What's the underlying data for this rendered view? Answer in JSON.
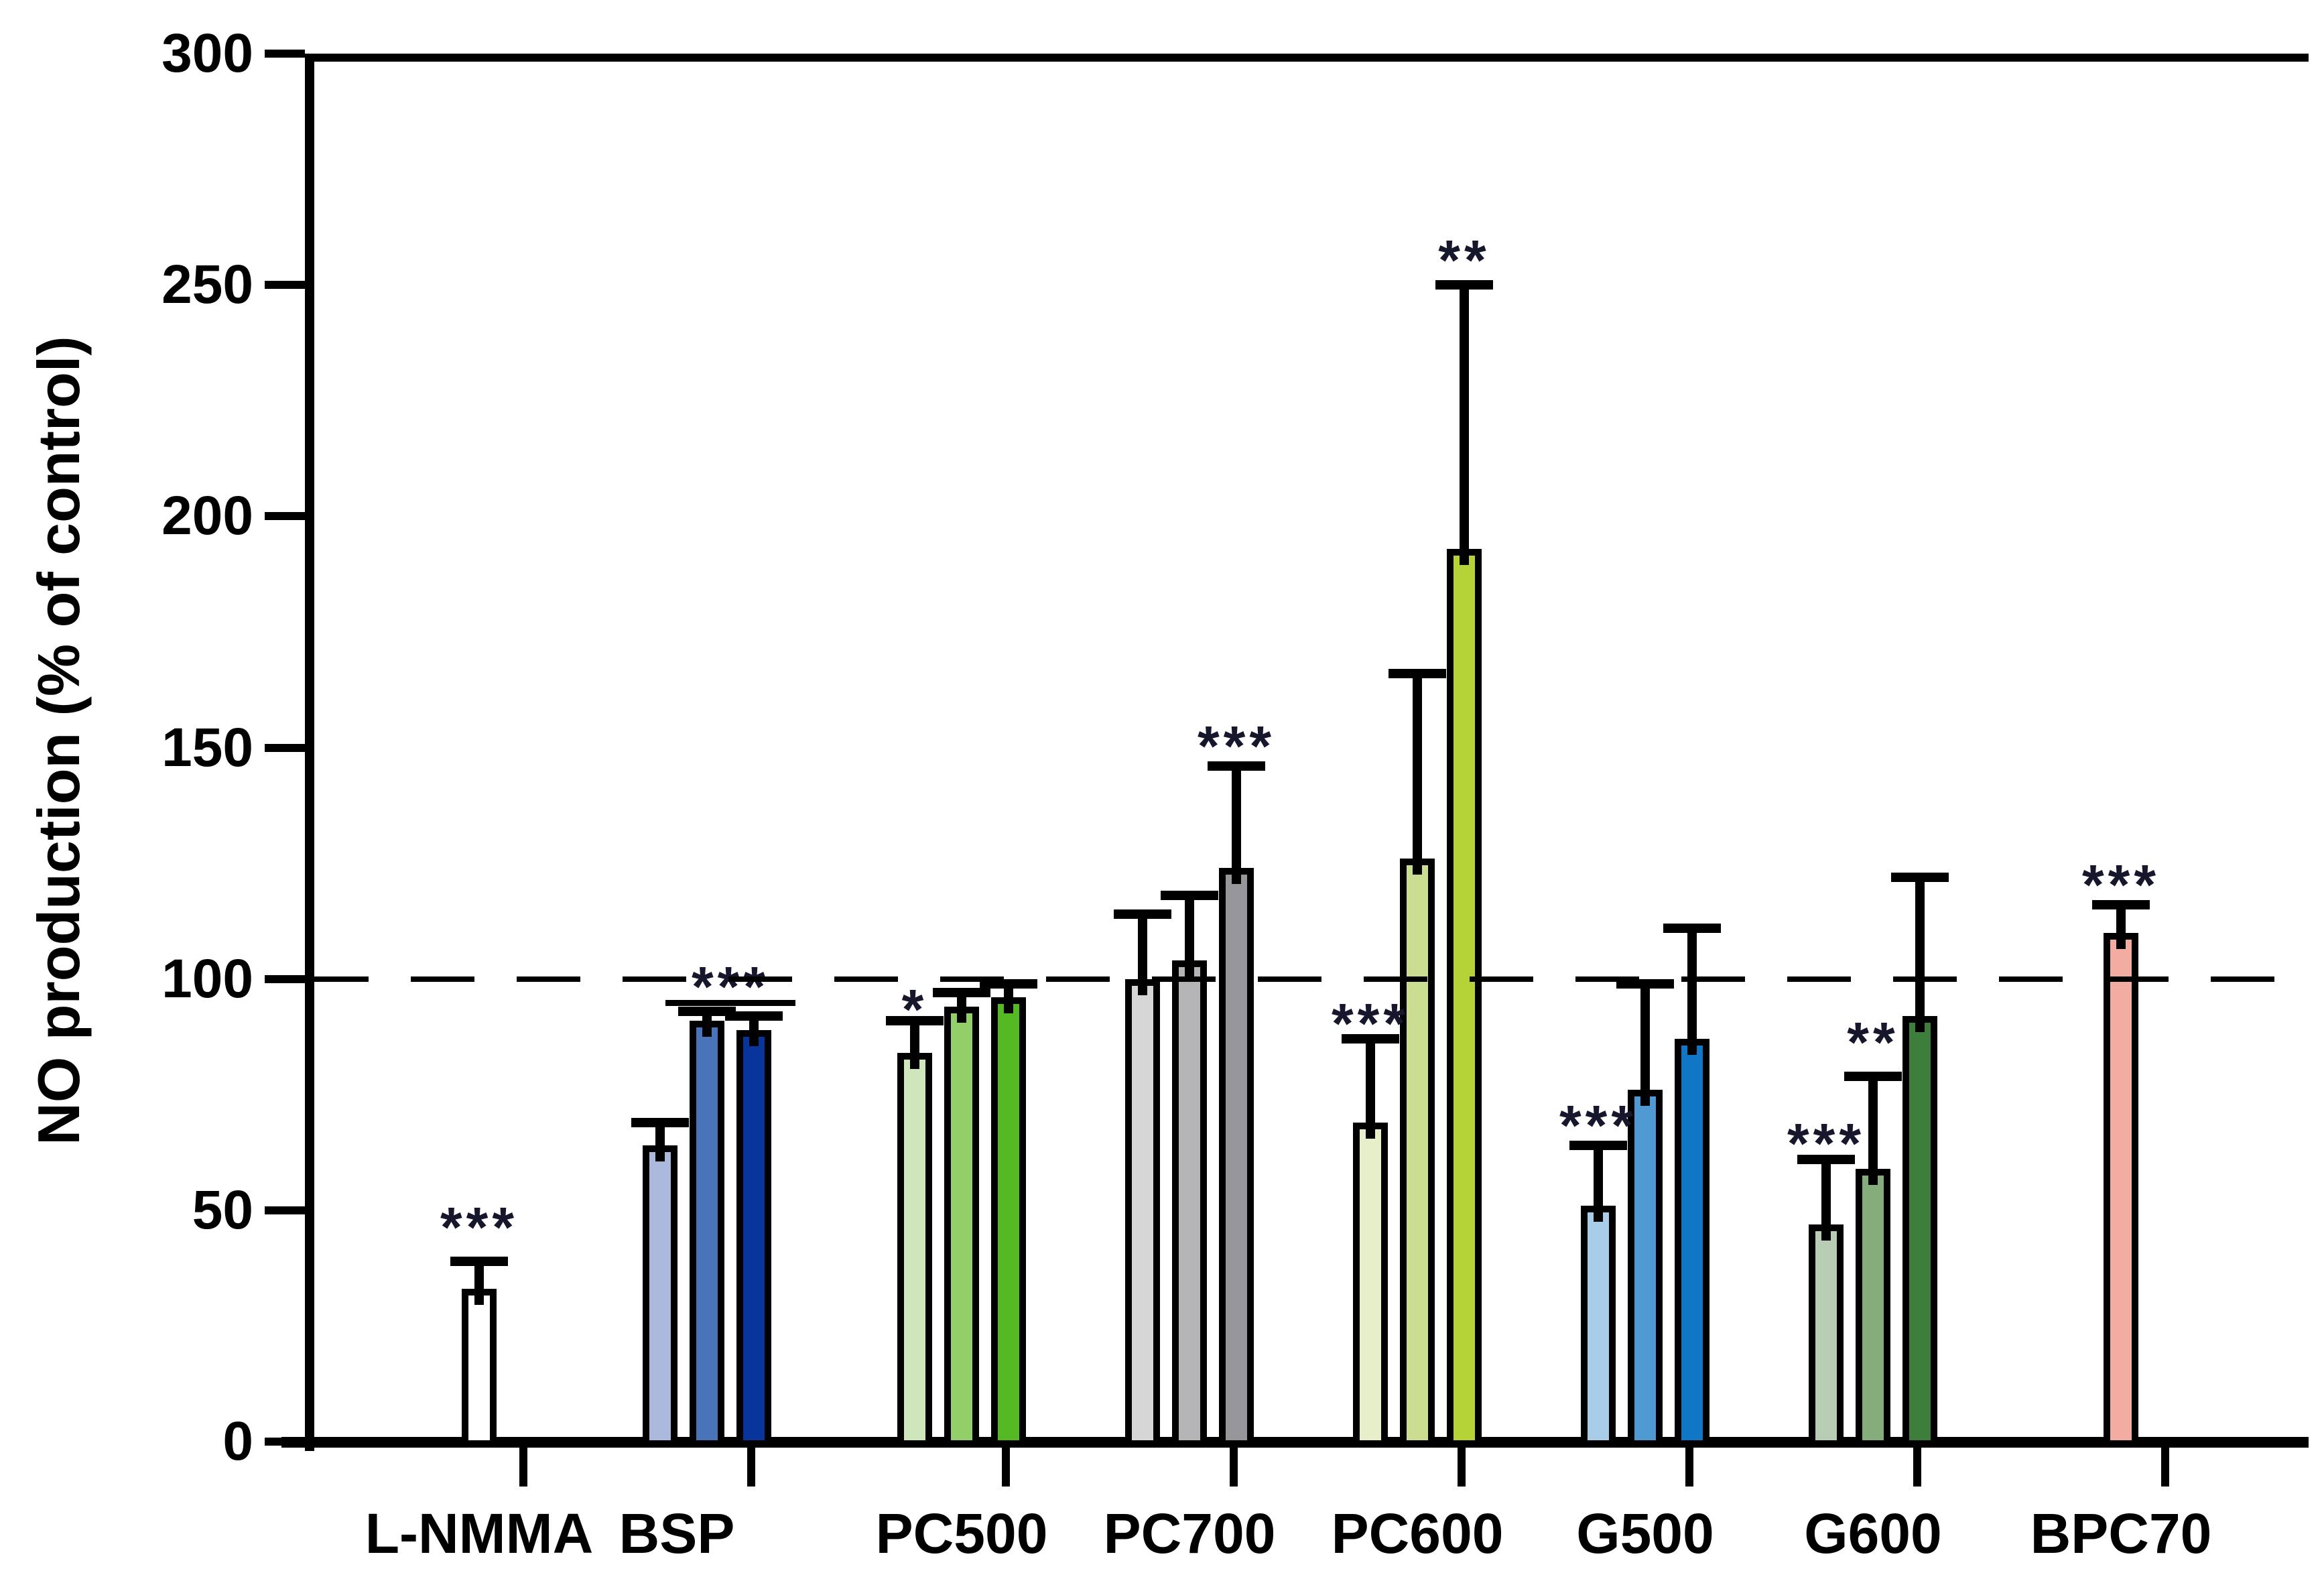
{
  "figure": {
    "background_color": "#ffffff",
    "axis_color": "#000000",
    "significance_color": "#16162c"
  },
  "chart_data": {
    "type": "bar",
    "title": "",
    "xlabel": "",
    "ylabel": "NO production (% of control)",
    "ylim": [
      0,
      300
    ],
    "yticks": [
      0,
      50,
      100,
      150,
      200,
      250,
      300
    ],
    "grid": false,
    "legend": "none",
    "reference_line": {
      "value": 100,
      "style": "dashed",
      "color": "#000000"
    },
    "error_bars": "upper only",
    "categories": [
      "L-NMMA",
      "BSP",
      "PC500",
      "PC700",
      "PC600",
      "G500",
      "G600",
      "BPC70"
    ],
    "groups": [
      {
        "label": "L-NMMA",
        "bars": [
          {
            "value": 33,
            "error_top": 39,
            "color": "#ffffff",
            "sig": "***",
            "sig_value": 49
          }
        ]
      },
      {
        "label": "BSP",
        "bars": [
          {
            "value": 64,
            "error_top": 69,
            "color": "#aab9dc",
            "sig": "",
            "sig_value": 0
          },
          {
            "value": 91,
            "error_top": 93,
            "color": "#4a74b9",
            "sig": "",
            "sig_value": 0
          },
          {
            "value": 89,
            "error_top": 92,
            "color": "#08359c",
            "sig": "",
            "sig_value": 0
          }
        ],
        "bracket": {
          "from_bar": 1,
          "to_bar": 2,
          "value": 95.5,
          "sig": "***",
          "sig_value": 101
        }
      },
      {
        "label": "PC500",
        "bars": [
          {
            "value": 84,
            "error_top": 91,
            "color": "#cfe6bc",
            "sig": "*",
            "sig_value": 96
          },
          {
            "value": 94,
            "error_top": 97,
            "color": "#93cf68",
            "sig": "",
            "sig_value": 0
          },
          {
            "value": 96,
            "error_top": 99,
            "color": "#54b923",
            "sig": "",
            "sig_value": 0
          }
        ]
      },
      {
        "label": "PC700",
        "bars": [
          {
            "value": 100,
            "error_top": 114,
            "color": "#d6d6d6",
            "sig": "",
            "sig_value": 0
          },
          {
            "value": 104,
            "error_top": 118,
            "color": "#b5b5b7",
            "sig": "",
            "sig_value": 0
          },
          {
            "value": 124,
            "error_top": 146,
            "color": "#96969b",
            "sig": "***",
            "sig_value": 153
          }
        ]
      },
      {
        "label": "PC600",
        "bars": [
          {
            "value": 69,
            "error_top": 87,
            "color": "#e6efca",
            "sig": "***",
            "sig_value": 93
          },
          {
            "value": 126,
            "error_top": 166,
            "color": "#cbdd90",
            "sig": "",
            "sig_value": 0
          },
          {
            "value": 193,
            "error_top": 250,
            "color": "#b5d337",
            "sig": "**",
            "sig_value": 258
          }
        ]
      },
      {
        "label": "G500",
        "bars": [
          {
            "value": 51,
            "error_top": 64,
            "color": "#a9cde9",
            "sig": "***",
            "sig_value": 71
          },
          {
            "value": 76,
            "error_top": 99,
            "color": "#4f9ad2",
            "sig": "",
            "sig_value": 0
          },
          {
            "value": 87,
            "error_top": 111,
            "color": "#1076c6",
            "sig": "",
            "sig_value": 0
          }
        ]
      },
      {
        "label": "G600",
        "bars": [
          {
            "value": 47,
            "error_top": 61,
            "color": "#b8cdb4",
            "sig": "***",
            "sig_value": 67
          },
          {
            "value": 59,
            "error_top": 79,
            "color": "#85ad7c",
            "sig": "**",
            "sig_value": 89
          },
          {
            "value": 92,
            "error_top": 122,
            "color": "#3d7e3c",
            "sig": "",
            "sig_value": 0
          }
        ]
      },
      {
        "label": "BPC70",
        "bars": [
          {
            "value": 110,
            "error_top": 116,
            "color": "#f2aca1",
            "sig": "***",
            "sig_value": 123
          }
        ]
      }
    ]
  }
}
